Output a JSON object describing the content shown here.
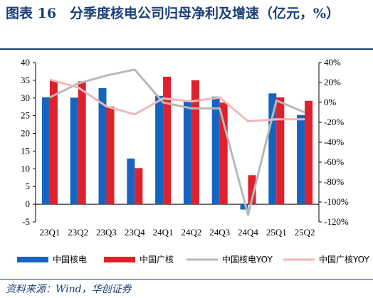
{
  "title": "图表 16　分季度核电公司归母净利及增速（亿元，%）",
  "source": "资料来源：Wind，华创证券",
  "colors": {
    "cgn_bar": "#1565c0",
    "cnnc_bar": "#e0202a",
    "cgn_yoy": "#b8b8b8",
    "cnnc_yoy": "#f0b8b8",
    "title": "#1a3f7a"
  },
  "chart_data": {
    "type": "bar",
    "categories": [
      "23Q1",
      "23Q2",
      "23Q3",
      "23Q4",
      "24Q1",
      "24Q2",
      "24Q3",
      "24Q4",
      "25Q1",
      "25Q2"
    ],
    "series": [
      {
        "name": "中国核电",
        "kind": "bar",
        "axis": "left",
        "values": [
          30.2,
          30.1,
          32.8,
          12.9,
          30.6,
          29.4,
          30.4,
          -1.5,
          31.3,
          25.2
        ]
      },
      {
        "name": "中国广核",
        "kind": "bar",
        "axis": "left",
        "values": [
          34.8,
          34.7,
          27.6,
          10.2,
          36.0,
          35.0,
          28.7,
          8.2,
          30.2,
          29.2
        ]
      },
      {
        "name": "中国核电YOY",
        "kind": "line",
        "axis": "right",
        "values": [
          5,
          19,
          27,
          33,
          0,
          -6,
          -6,
          -113,
          2,
          -10
        ]
      },
      {
        "name": "中国广核YOY",
        "kind": "line",
        "axis": "right",
        "values": [
          23,
          15,
          -4,
          -12,
          4,
          1,
          5,
          -19,
          -17,
          -17
        ]
      }
    ],
    "left_axis": {
      "min": -5,
      "max": 40,
      "ticks": [
        "40",
        "35",
        "30",
        "25",
        "20",
        "15",
        "10",
        "5",
        "0",
        "-5"
      ]
    },
    "right_axis": {
      "min": -120,
      "max": 40,
      "ticks": [
        "40%",
        "20%",
        "0%",
        "-20%",
        "-40%",
        "-60%",
        "-80%",
        "-100%",
        "-120%"
      ]
    },
    "grid": false,
    "legend_position": "bottom"
  }
}
